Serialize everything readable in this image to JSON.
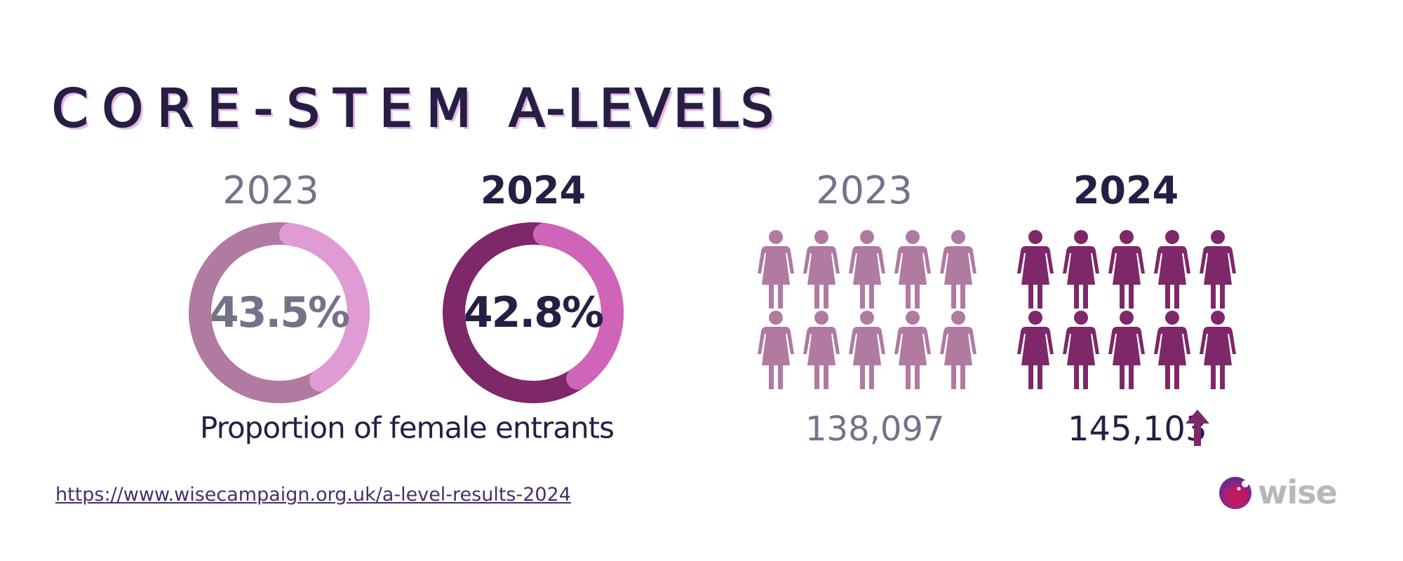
{
  "title": {
    "part1": "CORE-STEM",
    "part2": "A-LEVELS"
  },
  "proportion": {
    "caption": "Proportion of female entrants",
    "items": [
      {
        "year": "2023",
        "value_label": "43.5%",
        "value": 43.5,
        "base_color": "#b07aa1",
        "fill_color": "#e09ad4"
      },
      {
        "year": "2024",
        "value_label": "42.8%",
        "value": 42.8,
        "base_color": "#7e2769",
        "fill_color": "#d064b8"
      }
    ]
  },
  "entrants": {
    "items": [
      {
        "year": "2023",
        "count": "138,097",
        "figures": 10,
        "color": "#b07aa1"
      },
      {
        "year": "2024",
        "count": "145,103",
        "figures": 10,
        "color": "#7e2769",
        "trend_icon": "arrow-up-icon"
      }
    ]
  },
  "link": "https://www.wisecampaign.org.uk/a-level-results-2024",
  "logo": {
    "text": "wise"
  }
}
